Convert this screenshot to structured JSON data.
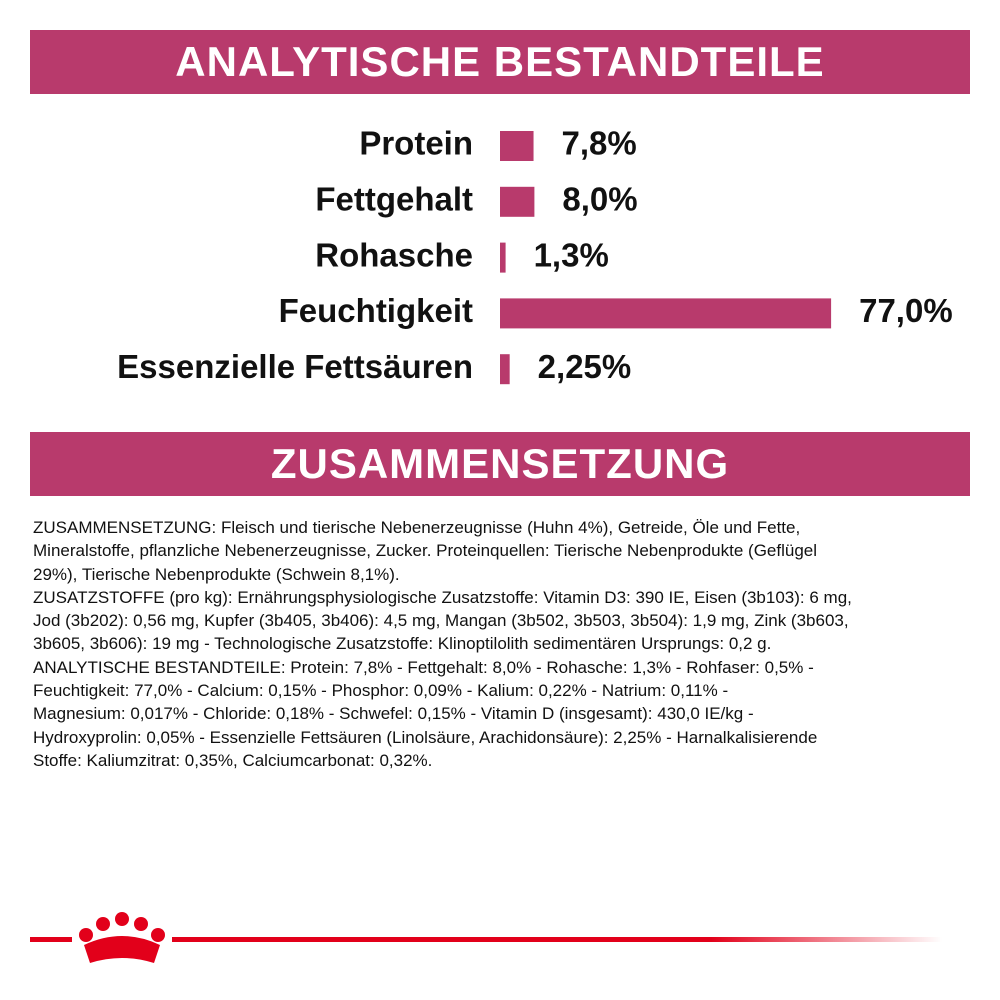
{
  "header_1": "ANALYTISCHE BESTANDTEILE",
  "chart_data": {
    "type": "bar",
    "orientation": "horizontal",
    "color": "#b83a6c",
    "categories": [
      "Protein",
      "Fettgehalt",
      "Rohasche",
      "Feuchtigkeit",
      "Essenzielle Fettsäuren"
    ],
    "values": [
      7.8,
      8.0,
      1.3,
      77.0,
      2.25
    ],
    "value_labels": [
      "7,8%",
      "8,0%",
      "1,3%",
      "77,0%",
      "2,25%"
    ]
  },
  "header_2": "ZUSAMMENSETZUNG",
  "body_lines": [
    "ZUSAMMENSETZUNG: Fleisch und tierische Nebenerzeugnisse (Huhn 4%), Getreide, Öle und Fette,",
    "Mineralstoffe, pflanzliche Nebenerzeugnisse, Zucker. Proteinquellen: Tierische Nebenprodukte (Geflügel",
    "29%), Tierische Nebenprodukte (Schwein 8,1%).",
    "ZUSATZSTOFFE (pro kg): Ernährungsphysiologische Zusatzstoffe: Vitamin D3: 390 IE, Eisen (3b103): 6 mg,",
    "Jod (3b202): 0,56 mg, Kupfer (3b405, 3b406): 4,5 mg, Mangan (3b502, 3b503, 3b504): 1,9 mg, Zink (3b603,",
    "3b605, 3b606): 19 mg - Technologische Zusatzstoffe: Klinoptilolith sedimentären Ursprungs: 0,2 g.",
    "ANALYTISCHE BESTANDTEILE: Protein: 7,8% - Fettgehalt: 8,0% - Rohasche: 1,3% - Rohfaser: 0,5% -",
    "Feuchtigkeit: 77,0% - Calcium: 0,15% - Phosphor: 0,09% - Kalium: 0,22% - Natrium: 0,11% -",
    "Magnesium: 0,017% - Chloride: 0,18% - Schwefel: 0,15% - Vitamin D (insgesamt): 430,0 IE/kg -",
    "Hydroxyprolin: 0,05% - Essenzielle Fettsäuren (Linolsäure, Arachidonsäure): 2,25% - Harnalkalisierende",
    "Stoffe: Kaliumzitrat: 0,35%, Calciumcarbonat: 0,32%."
  ]
}
